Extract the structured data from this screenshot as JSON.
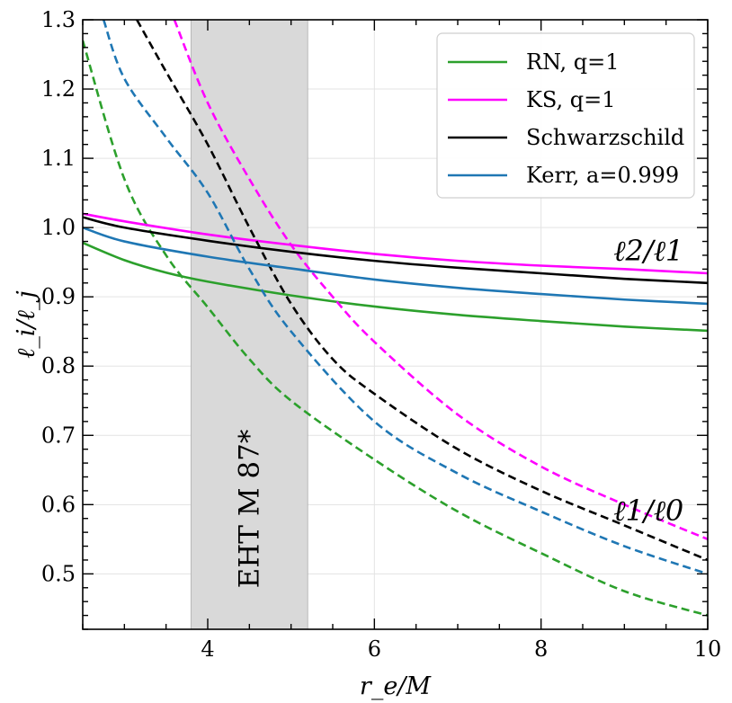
{
  "chart_data": {
    "type": "line",
    "xlabel": "r_e/M",
    "ylabel": "ℓ_i/ℓ_j",
    "xlim": [
      2.5,
      10
    ],
    "ylim": [
      0.42,
      1.3
    ],
    "x_ticks": [
      4,
      6,
      8,
      10
    ],
    "x_tick_labels": [
      "4",
      "6",
      "8",
      "10"
    ],
    "y_ticks": [
      0.5,
      0.6,
      0.7,
      0.8,
      0.9,
      1.0,
      1.1,
      1.2,
      1.3
    ],
    "y_tick_labels": [
      "0.5",
      "0.6",
      "0.7",
      "0.8",
      "0.9",
      "1.0",
      "1.1",
      "1.2",
      "1.3"
    ],
    "grid": true,
    "legend_position": "top-right",
    "shaded_band": {
      "x_range": [
        3.8,
        5.2
      ],
      "label": "EHT M 87*",
      "color": "#d9d9d9"
    },
    "annotations": [
      {
        "text": "ℓ2/ℓ1",
        "x": 9.3,
        "y": 0.965
      },
      {
        "text": "ℓ1/ℓ0",
        "x": 9.3,
        "y": 0.59
      }
    ],
    "series": [
      {
        "name": "RN, q=1",
        "color": "#2ca02c",
        "ratio_21": {
          "x": [
            2.5,
            3,
            3.5,
            4,
            5,
            6,
            7,
            8,
            9,
            10
          ],
          "y": [
            0.978,
            0.953,
            0.935,
            0.922,
            0.902,
            0.886,
            0.874,
            0.865,
            0.857,
            0.851
          ]
        },
        "ratio_10": {
          "x": [
            2.5,
            3,
            3.5,
            4,
            4.5,
            5,
            6,
            7,
            8,
            9,
            10
          ],
          "y": [
            1.27,
            1.07,
            0.96,
            0.885,
            0.81,
            0.75,
            0.665,
            0.59,
            0.53,
            0.475,
            0.44
          ]
        }
      },
      {
        "name": "KS, q=1",
        "color": "#ff00ff",
        "ratio_21": {
          "x": [
            2.5,
            3,
            4,
            5,
            6,
            7,
            8,
            9,
            10
          ],
          "y": [
            1.02,
            1.009,
            0.99,
            0.975,
            0.962,
            0.952,
            0.945,
            0.94,
            0.934
          ]
        },
        "ratio_10": {
          "x": [
            3.6,
            4,
            4.5,
            5,
            5.5,
            6,
            7,
            8,
            9,
            10
          ],
          "y": [
            1.3,
            1.18,
            1.07,
            0.975,
            0.9,
            0.835,
            0.73,
            0.655,
            0.6,
            0.55
          ]
        }
      },
      {
        "name": "Schwarzschild",
        "color": "#000000",
        "ratio_21": {
          "x": [
            2.5,
            3,
            4,
            5,
            6,
            7,
            8,
            9,
            10
          ],
          "y": [
            1.015,
            1.0,
            0.981,
            0.965,
            0.952,
            0.942,
            0.934,
            0.926,
            0.92
          ]
        },
        "ratio_10": {
          "x": [
            3.15,
            3.5,
            4,
            4.5,
            5,
            5.5,
            6,
            7,
            8,
            9,
            10
          ],
          "y": [
            1.3,
            1.225,
            1.12,
            1.0,
            0.89,
            0.81,
            0.76,
            0.68,
            0.62,
            0.57,
            0.52
          ]
        }
      },
      {
        "name": "Kerr, a=0.999",
        "color": "#1f77b4",
        "ratio_21": {
          "x": [
            2.5,
            3,
            4,
            5,
            6,
            7,
            8,
            9,
            10
          ],
          "y": [
            1.0,
            0.98,
            0.958,
            0.941,
            0.925,
            0.913,
            0.904,
            0.896,
            0.89
          ]
        },
        "ratio_10": {
          "x": [
            2.75,
            3,
            3.5,
            4,
            4.5,
            5,
            6,
            7,
            8,
            9,
            10
          ],
          "y": [
            1.3,
            1.215,
            1.13,
            1.05,
            0.94,
            0.85,
            0.72,
            0.645,
            0.59,
            0.54,
            0.5
          ]
        }
      }
    ]
  }
}
